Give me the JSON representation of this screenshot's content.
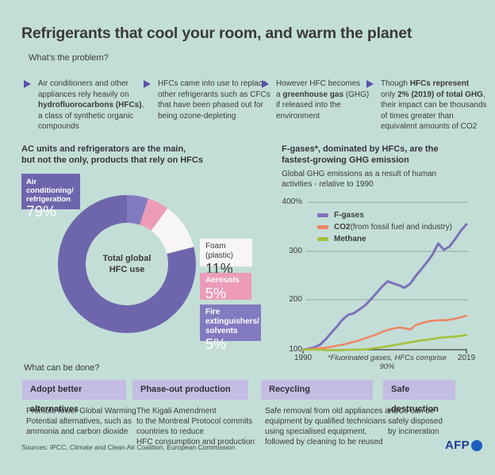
{
  "page": {
    "title": "Refrigerants that cool your room, and warm the planet",
    "problem_heading": "What’s the problem?",
    "solutions_heading": "What can be done?",
    "sources": "Sources: IPCC, Climate and Clean Air Coalition, European Commission",
    "logo_text": "AFP"
  },
  "problems": [
    {
      "t1": "Air conditioners and other\nappliances rely heavily on\n",
      "b1": "hydrofluorocarbons (HFCs)",
      "t2": ",\na class of synthetic organic\ncompounds",
      "b2": "",
      "t3": ""
    },
    {
      "t1": "HFCs came into use to replace\nother refrigerants such as CFCs\nthat have been phased out for\nbeing ozone-depleting",
      "b1": "",
      "t2": "",
      "b2": "",
      "t3": ""
    },
    {
      "t1": "However HFC becomes\na ",
      "b1": "greenhouse gas",
      "t2": " (GHG)\nif released into the\nenvironment",
      "b2": "",
      "t3": ""
    },
    {
      "t1": "Though ",
      "b1": "HFCs represent",
      "t2": "\nonly ",
      "b2": "2% (2019) of total GHG",
      "t3": ",\ntheir impact can be thousands\nof times greater than\nequivalent amounts of CO2"
    }
  ],
  "chart_data": [
    {
      "type": "pie",
      "title": "AC units and refrigerators are the main,\nbut not the only, products that rely on HFCs",
      "center_label": "Total global\nHFC use",
      "slices": [
        {
          "label": "Fire extinguishers/\nsolvents",
          "pct": "5%",
          "value": 5,
          "color": "#837bc0"
        },
        {
          "label": "Aerosols",
          "pct": "5%",
          "value": 5,
          "color": "#ec9bb9"
        },
        {
          "label": "Foam (plastic)",
          "pct": "11%",
          "value": 11,
          "color": "#f8f5f6"
        },
        {
          "label": "Air conditioning/\nrefrigeration",
          "pct": "79%",
          "value": 79,
          "color": "#6e66ad"
        }
      ]
    },
    {
      "type": "line",
      "title": "F-gases*, dominated by HFCs, are the\nfastest-growing GHG emission",
      "subtitle": "Global GHG emissions as a result of human\nactivities - relative to 1990",
      "footnote": "*Fluorinated gases, HFCs comprise 90%",
      "ylim": [
        100,
        400
      ],
      "yticks": [
        "400%",
        "300",
        "200",
        "100"
      ],
      "xticks": [
        "1990",
        "2019"
      ],
      "x_years": [
        1990,
        2019
      ],
      "legend_position": "top-left-inside",
      "grid": true,
      "series": [
        {
          "name": "F-gases",
          "name_rest": "",
          "color": "#7b72b8",
          "width": 3,
          "values": [
            100,
            102,
            105,
            110,
            121,
            134,
            147,
            161,
            171,
            174,
            182,
            190,
            202,
            215,
            228,
            239,
            235,
            231,
            226,
            234,
            250,
            264,
            278,
            294,
            316,
            303,
            310,
            325,
            342,
            355
          ]
        },
        {
          "name": "CO2",
          "name_rest": " (from fossil fuel and industry)",
          "color": "#ef8767",
          "width": 2.6,
          "values": [
            100,
            101,
            102,
            103,
            104,
            106,
            108,
            110,
            113,
            116,
            119,
            123,
            127,
            131,
            136,
            140,
            143,
            145,
            144,
            141,
            150,
            154,
            157,
            159,
            160,
            160,
            161,
            163,
            166,
            169
          ]
        },
        {
          "name": "Methane",
          "name_rest": "",
          "color": "#a5c13e",
          "width": 2.6,
          "values": [
            100,
            100,
            100,
            100,
            99,
            99,
            99,
            99,
            100,
            100,
            100,
            101,
            102,
            104,
            105,
            107,
            109,
            111,
            113,
            115,
            117,
            119,
            120,
            122,
            124,
            125,
            126,
            127,
            128,
            130
          ]
        }
      ]
    }
  ],
  "solutions": [
    {
      "title": "Adopt better alternatives",
      "body": "Promote lower Global Warming\nPotential alternatives, such as\nammonia and carbon dioxide"
    },
    {
      "title": "Phase-out production",
      "body": "The Kigali Amendment\nto the Montreal Protocol commits\ncountries to reduce\nHFC consumption and production"
    },
    {
      "title": "Recycling",
      "body": "Safe removal from old appliances and\nequipment by qualified technicians\nusing specialised equipment,\nfollowed by cleaning to be reused"
    },
    {
      "title": "Safe destruction",
      "body": "HFCs can be\nsafely disposed\nby incineration"
    }
  ],
  "colors": {
    "background": "#c3ded7",
    "accent_purple": "#5a51a9",
    "header_box": "#c5bce3",
    "gridline": "#8fa8a2",
    "axis": "#3f3e40",
    "afp_blue": "#1d3d91",
    "afp_circle": "#1c5ec0"
  }
}
